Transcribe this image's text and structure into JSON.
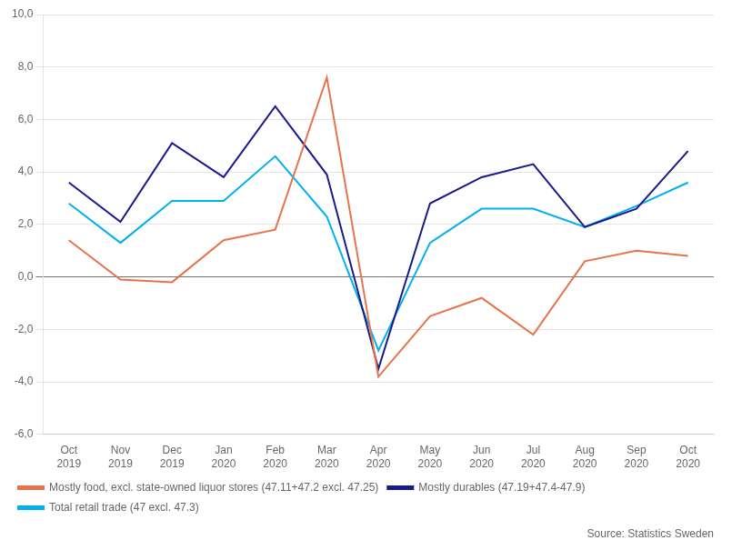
{
  "chart_data": {
    "type": "line",
    "categories": [
      "Oct 2019",
      "Nov 2019",
      "Dec 2019",
      "Jan 2020",
      "Feb 2020",
      "Mar 2020",
      "Apr 2020",
      "May 2020",
      "Jun 2020",
      "Jul 2020",
      "Aug 2020",
      "Sep 2020",
      "Oct 2020"
    ],
    "series": [
      {
        "name": "Mostly food, excl. state-owned liquor stores (47.11+47.2 excl. 47.25)",
        "color": "#E8734A",
        "values": [
          1.4,
          -0.1,
          -0.2,
          1.4,
          1.8,
          7.6,
          -3.8,
          -1.5,
          -0.8,
          -2.2,
          0.6,
          1.0,
          0.8
        ]
      },
      {
        "name": "Mostly durables (47.19+47.4-47.9)",
        "color": "#1A1A8C",
        "values": [
          3.6,
          2.1,
          5.1,
          3.8,
          6.5,
          3.9,
          -3.5,
          2.8,
          3.8,
          4.3,
          1.9,
          2.6,
          4.8
        ]
      },
      {
        "name": "Total retail trade (47 excl. 47.3)",
        "color": "#00B0F0",
        "values": [
          2.8,
          1.3,
          2.9,
          2.9,
          4.6,
          2.3,
          -2.8,
          1.3,
          2.6,
          2.6,
          1.9,
          2.7,
          3.6
        ]
      }
    ],
    "ylim": [
      -6.0,
      10.0
    ],
    "yticks": [
      {
        "value": -6,
        "label": "-6,0"
      },
      {
        "value": -4,
        "label": "-4,0"
      },
      {
        "value": -2,
        "label": "-2,0"
      },
      {
        "value": 0,
        "label": "0,0"
      },
      {
        "value": 2,
        "label": "2,0"
      },
      {
        "value": 4,
        "label": "4,0"
      },
      {
        "value": 6,
        "label": "6,0"
      },
      {
        "value": 8,
        "label": "8,0"
      },
      {
        "value": 10,
        "label": "10,0"
      }
    ],
    "grid": true,
    "legend": "lower left",
    "annotation": "Source: Statistics Sweden"
  }
}
